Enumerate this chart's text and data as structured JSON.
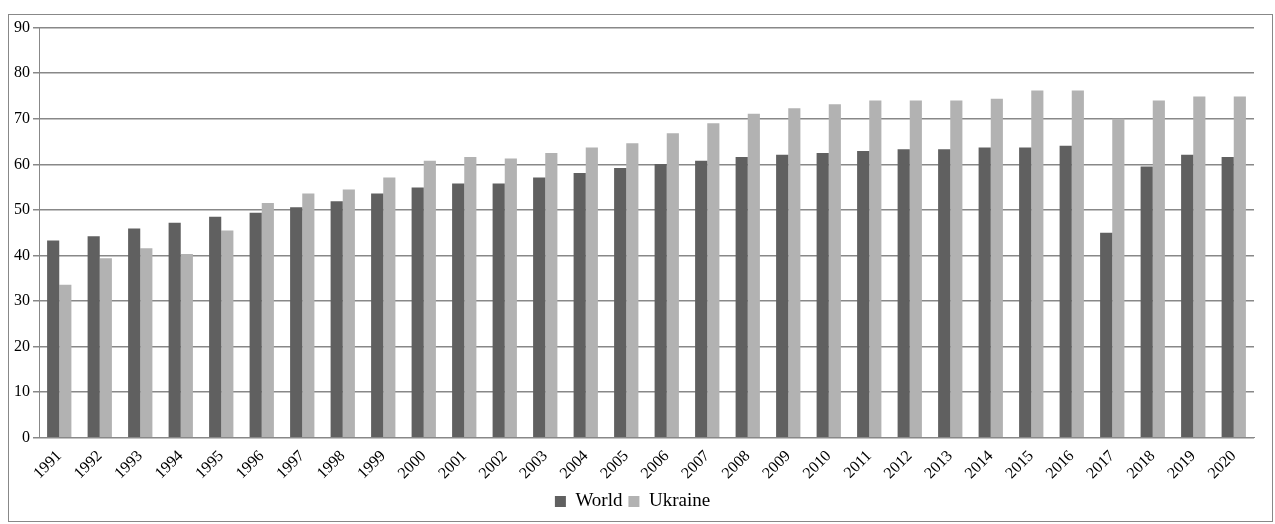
{
  "chart_data": {
    "type": "bar",
    "categories": [
      "1991",
      "1992",
      "1993",
      "1994",
      "1995",
      "1996",
      "1997",
      "1998",
      "1999",
      "2000",
      "2001",
      "2002",
      "2003",
      "2004",
      "2005",
      "2006",
      "2007",
      "2008",
      "2009",
      "2010",
      "2011",
      "2012",
      "2013",
      "2014",
      "2015",
      "2016",
      "2017",
      "2018",
      "2019",
      "2020"
    ],
    "series": [
      {
        "name": "World",
        "color": "#606060",
        "values": [
          43.3,
          44.2,
          45.9,
          47.2,
          48.5,
          49.4,
          50.6,
          51.9,
          53.6,
          54.9,
          55.8,
          55.8,
          57.1,
          58.1,
          59.2,
          60.1,
          60.8,
          61.6,
          62.1,
          62.5,
          62.9,
          63.3,
          63.3,
          63.7,
          63.7,
          64.1,
          45.0,
          59.5,
          62.1,
          61.6
        ]
      },
      {
        "name": "Ukraine",
        "color": "#b2b2b2",
        "values": [
          33.6,
          39.4,
          41.6,
          40.3,
          45.5,
          51.5,
          53.6,
          54.5,
          57.1,
          60.8,
          61.6,
          61.3,
          62.5,
          63.7,
          64.6,
          66.8,
          69.0,
          71.1,
          72.3,
          73.2,
          74.0,
          74.0,
          74.0,
          74.4,
          76.2,
          76.2,
          70.0,
          74.0,
          74.9,
          74.9
        ]
      }
    ],
    "ylim": [
      0,
      90
    ],
    "yticks": [
      0,
      10,
      20,
      30,
      40,
      50,
      60,
      70,
      80,
      90
    ],
    "grid": "y",
    "legend": "bottom"
  }
}
